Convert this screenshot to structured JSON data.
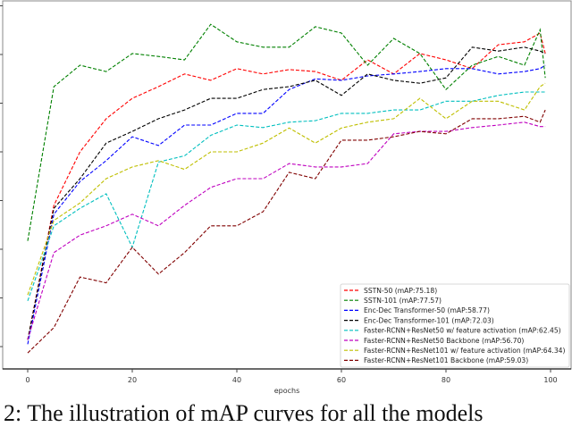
{
  "chart_data": {
    "type": "line",
    "xlabel": "epochs",
    "ylabel": "",
    "xlim": [
      -5,
      104
    ],
    "ylim": [
      5.4,
      80.6
    ],
    "x_ticks": [
      0,
      20,
      40,
      60,
      80,
      100
    ],
    "x_tick_labels": [
      "0",
      "20",
      "40",
      "60",
      "80",
      "100"
    ],
    "y_ticks": [
      10,
      20,
      30,
      40,
      50,
      60,
      70,
      80
    ],
    "grid": false,
    "legend_position": "bottom-right",
    "x": [
      0,
      5,
      10,
      15,
      20,
      25,
      30,
      35,
      40,
      45,
      50,
      55,
      60,
      65,
      70,
      75,
      80,
      85,
      90,
      95,
      98,
      99
    ],
    "series": [
      {
        "name": "SSTN-50 (mAP:75.18)",
        "color": "#ff0000",
        "values": [
          11.4,
          39,
          50,
          56.8,
          61,
          63.4,
          66,
          64.7,
          67.1,
          66,
          66.9,
          66.5,
          64.7,
          68.9,
          66,
          70.2,
          68.9,
          67.1,
          72,
          72.6,
          74.4,
          70.2
        ]
      },
      {
        "name": "SSTN-101 (mAP:77.57)",
        "color": "#008000",
        "values": [
          31.7,
          63.4,
          67.8,
          66.5,
          70.2,
          69.6,
          68.9,
          76.2,
          72.6,
          71.5,
          71.5,
          75.7,
          74.4,
          67.8,
          73.3,
          70.2,
          62.8,
          67.8,
          69.6,
          67.8,
          75.1,
          65.2
        ]
      },
      {
        "name": "Enc-Dec Transformer-50 (mAP:58.77)",
        "color": "#0000ff",
        "values": [
          10.5,
          37.2,
          43.9,
          48.2,
          53.1,
          51.3,
          55.5,
          55.5,
          57.9,
          57.9,
          62.8,
          65,
          64.7,
          65.6,
          66,
          66.5,
          67.1,
          67.1,
          66,
          66.5,
          67.1,
          67.8
        ]
      },
      {
        "name": "Enc-Dec Transformer-101 (mAP:72.03)",
        "color": "#000000",
        "values": [
          11.4,
          38.4,
          44.5,
          51.8,
          54.2,
          56.8,
          58.6,
          61,
          61,
          62.8,
          63.4,
          64.7,
          61.6,
          66,
          64.7,
          64.1,
          65.2,
          71.5,
          70.7,
          71.5,
          70.7,
          70.2
        ]
      },
      {
        "name": "Faster-RCNN+ResNet50 w/ feature activation (mAP:62.45)",
        "color": "#00bfbf",
        "values": [
          19.4,
          34.8,
          38.4,
          41.4,
          30.4,
          47.9,
          49.2,
          53.4,
          55.5,
          55,
          56.1,
          56.4,
          57.9,
          57.9,
          58.6,
          58.6,
          60.4,
          60.4,
          61.6,
          62.3,
          62.3,
          62.3
        ]
      },
      {
        "name": "Faster-RCNN+ResNet50 Backbone (mAP:56.70)",
        "color": "#bf00bf",
        "values": [
          11.4,
          29.3,
          32.9,
          34.8,
          37.2,
          34.8,
          39,
          42.7,
          44.5,
          44.5,
          47.6,
          46.9,
          46.9,
          47.6,
          53.7,
          54.2,
          54.2,
          55,
          55.5,
          56.1,
          55.2,
          55.2
        ]
      },
      {
        "name": "Faster-RCNN+ResNet101 w/ feature activation (mAP:64.34)",
        "color": "#bfbf00",
        "values": [
          20.6,
          35.9,
          39.5,
          44.5,
          46.9,
          48.2,
          46.4,
          50,
          50,
          51.8,
          54.9,
          51.8,
          54.9,
          56.1,
          56.8,
          61,
          56.8,
          60.4,
          60.4,
          58.6,
          63.4,
          64.1
        ]
      },
      {
        "name": "Faster-RCNN+ResNet101 Backbone (mAP:59.03)",
        "color": "#800000",
        "values": [
          8.7,
          13.9,
          24.3,
          23.1,
          30.4,
          24.9,
          29.3,
          34.8,
          34.8,
          37.7,
          45.8,
          44.5,
          52.4,
          52.4,
          53.1,
          54.2,
          53.7,
          56.8,
          56.8,
          57.3,
          56.1,
          58.6
        ]
      }
    ]
  },
  "caption": "2: The illustration of mAP curves for all the models"
}
